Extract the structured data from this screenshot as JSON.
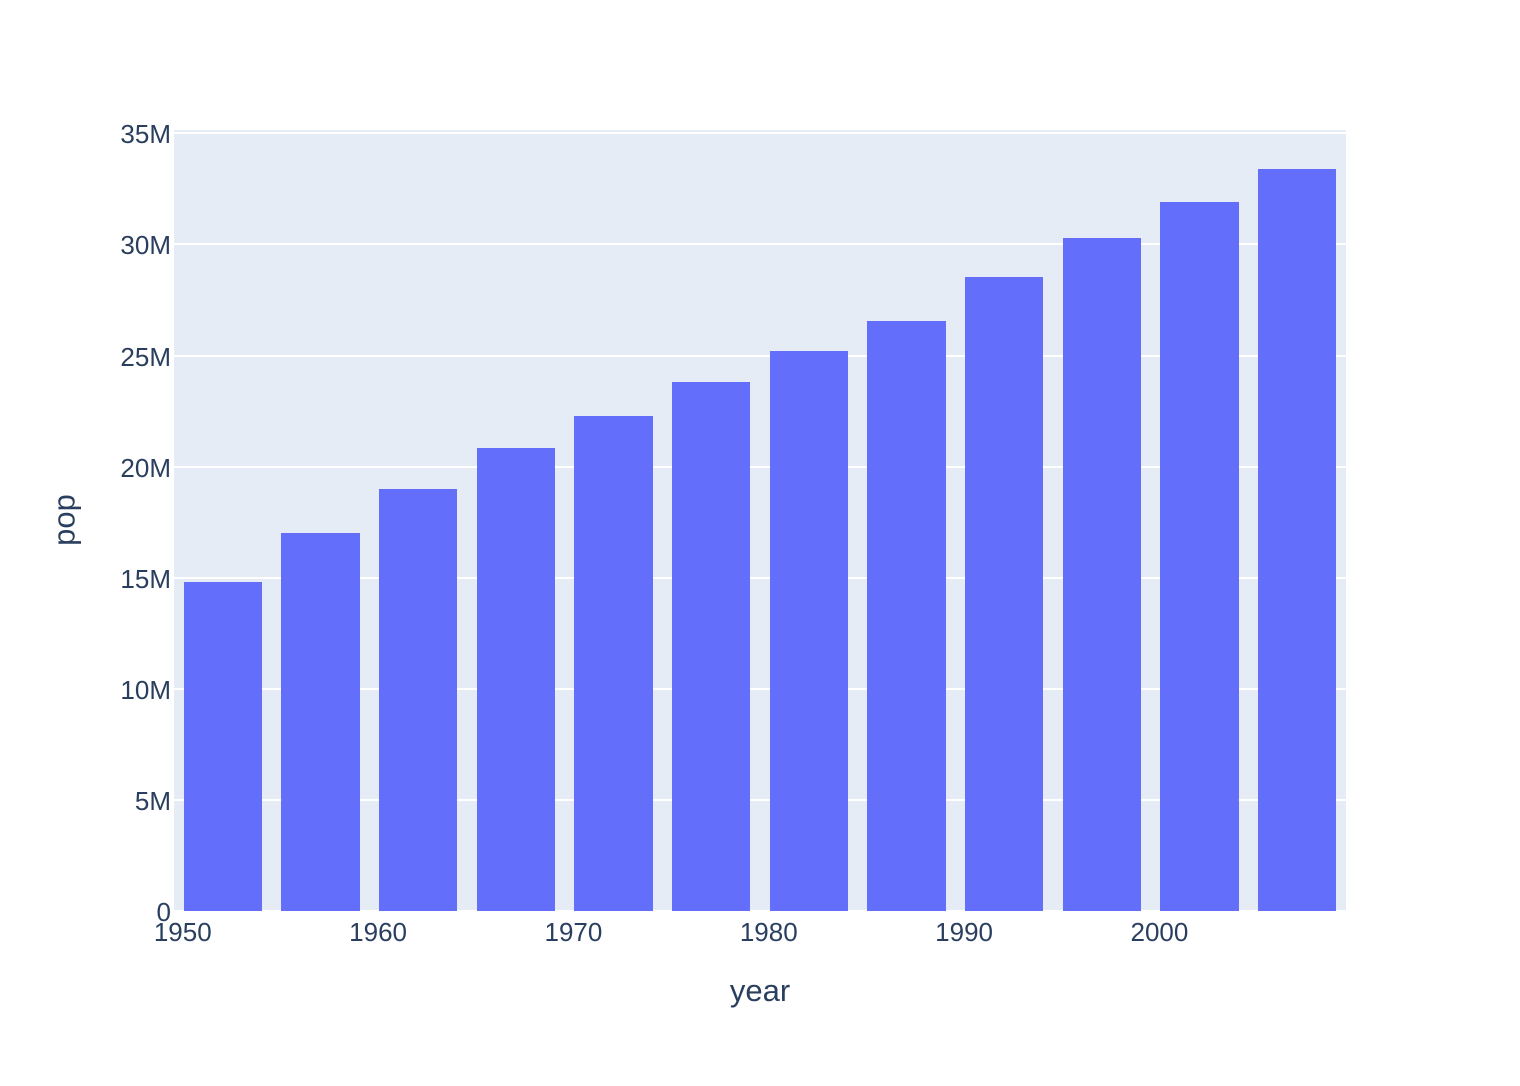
{
  "chart_data": {
    "type": "bar",
    "title": "",
    "xlabel": "year",
    "ylabel": "pop",
    "x": [
      1952,
      1957,
      1962,
      1967,
      1972,
      1977,
      1982,
      1987,
      1992,
      1997,
      2002,
      2007
    ],
    "values": [
      14785584,
      17010154,
      18985849,
      20819767,
      22284500,
      23796400,
      25201900,
      26549700,
      28523502,
      30305843,
      31902268,
      33390141
    ],
    "series_name": "pop",
    "bar_width_x_units": 4,
    "xlim": [
      1949.5,
      2009.5
    ],
    "ylim": [
      0,
      35150000
    ],
    "x_ticks": [
      {
        "value": 1950,
        "label": "1950"
      },
      {
        "value": 1960,
        "label": "1960"
      },
      {
        "value": 1970,
        "label": "1970"
      },
      {
        "value": 1980,
        "label": "1980"
      },
      {
        "value": 1990,
        "label": "1990"
      },
      {
        "value": 2000,
        "label": "2000"
      }
    ],
    "y_ticks": [
      {
        "value": 0,
        "label": "0"
      },
      {
        "value": 5000000,
        "label": "5M"
      },
      {
        "value": 10000000,
        "label": "10M"
      },
      {
        "value": 15000000,
        "label": "15M"
      },
      {
        "value": 20000000,
        "label": "20M"
      },
      {
        "value": 25000000,
        "label": "25M"
      },
      {
        "value": 30000000,
        "label": "30M"
      },
      {
        "value": 35000000,
        "label": "35M"
      }
    ],
    "grid": true,
    "legend": false,
    "colors": {
      "bar": "#636EFA",
      "plot_background": "#E5ECF6",
      "paper_background": "#FFFFFF",
      "gridline": "#FFFFFF",
      "text": "#2A3F5F"
    }
  }
}
